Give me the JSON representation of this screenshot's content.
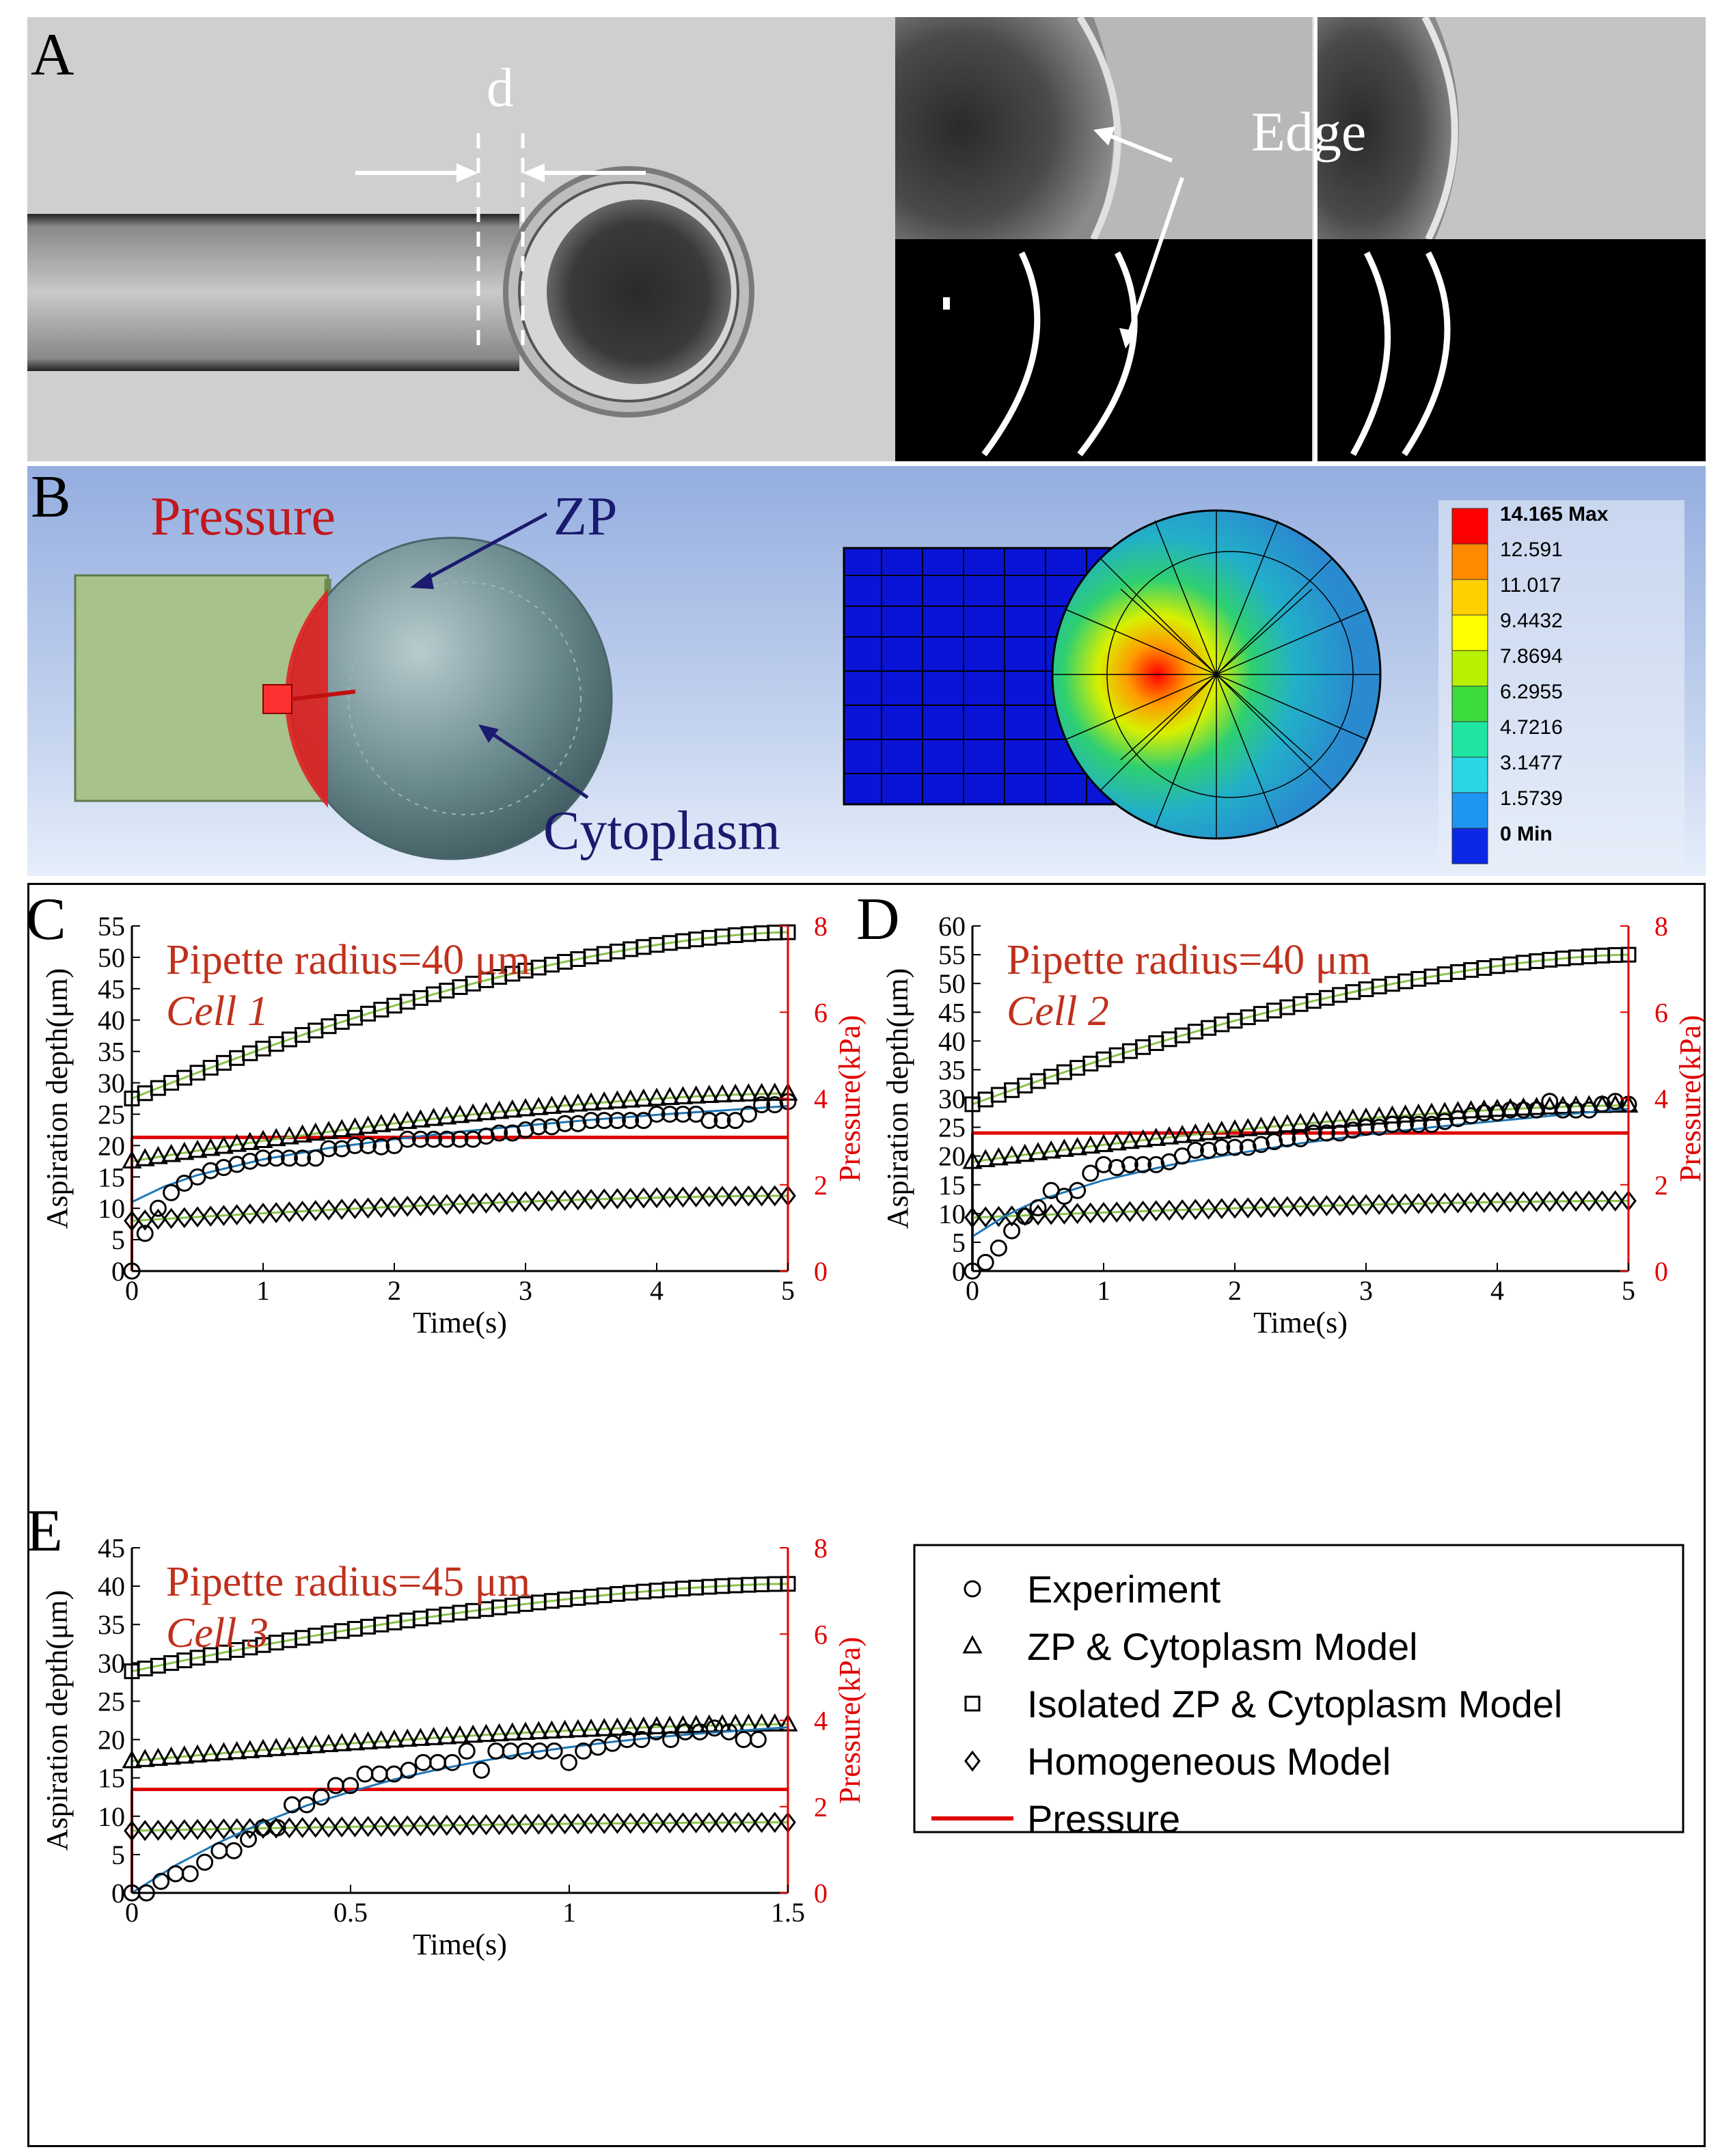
{
  "panel_labels": {
    "a": "A",
    "b": "B",
    "c": "C",
    "d": "D",
    "e": "E"
  },
  "panel_a": {
    "d_label": "d",
    "edge_label": "Edge"
  },
  "panel_b": {
    "pressure_label": "Pressure",
    "zp_label": "ZP",
    "cytoplasm_label": "Cytoplasm",
    "colorbar_labels": [
      "14.165 Max",
      "12.591",
      "11.017",
      "9.4432",
      "7.8694",
      "6.2955",
      "4.7216",
      "3.1477",
      "1.5739",
      "0 Min"
    ],
    "colorbar_colors": [
      "#ff0000",
      "#ff8a00",
      "#ffcf00",
      "#ffff00",
      "#b8f000",
      "#3cdc3c",
      "#1ee6a0",
      "#28d6e6",
      "#1e96f0",
      "#0a28e6"
    ]
  },
  "legend": {
    "items": [
      {
        "label": "Experiment",
        "marker": "circle"
      },
      {
        "label": "ZP & Cytoplasm Model",
        "marker": "triangle"
      },
      {
        "label": "Isolated ZP & Cytoplasm Model",
        "marker": "square"
      },
      {
        "label": "Homogeneous Model",
        "marker": "diamond"
      },
      {
        "label": "Pressure",
        "marker": "line"
      }
    ]
  },
  "colors": {
    "pressure": "#e00000",
    "fit": "#1f77b4",
    "model_line": "#8bc34a",
    "annotation": "#c0301c",
    "panel_b_text": "#1a1a6e"
  },
  "chart_data": [
    {
      "id": "C",
      "type": "line",
      "annotation_line1": "Pipette radius=40 μm",
      "annotation_line2": "Cell 1",
      "xlabel": "Time(s)",
      "ylabel": "Aspiration depth(μm)",
      "y2label": "Pressure(kPa)",
      "xlim": [
        0,
        5
      ],
      "ylim": [
        0,
        55
      ],
      "y2lim": [
        0,
        8
      ],
      "xticks": [
        0,
        1,
        2,
        3,
        4,
        5
      ],
      "xticklabels": [
        "0",
        "1",
        "2",
        "3",
        "4",
        "5"
      ],
      "yticks": [
        0,
        5,
        10,
        15,
        20,
        25,
        30,
        35,
        40,
        45,
        50,
        55
      ],
      "yticklabels": [
        "0",
        "5",
        "10",
        "15",
        "20",
        "25",
        "30",
        "35",
        "40",
        "45",
        "50",
        "55"
      ],
      "y2ticks": [
        0,
        2,
        4,
        6,
        8
      ],
      "y2ticklabels": [
        "0",
        "2",
        "4",
        "6",
        "8"
      ],
      "pressure": 3.1,
      "experiment": {
        "t_step": 0.1,
        "values": [
          0,
          6,
          10,
          12.5,
          14,
          15,
          16,
          16.5,
          17,
          17.5,
          18,
          18,
          18,
          18,
          18,
          19.5,
          19.5,
          20,
          20,
          19.8,
          20,
          21,
          21,
          21,
          21,
          21,
          21,
          21.5,
          22,
          22,
          22.5,
          23,
          23,
          23.5,
          23.5,
          24,
          24,
          24,
          24,
          24,
          25,
          25,
          25,
          25,
          24,
          24,
          24,
          25,
          26.5,
          26.5,
          27
        ]
      },
      "fit": {
        "t": [
          0,
          0.25,
          0.5,
          1,
          1.5,
          2,
          2.5,
          3,
          3.5,
          4,
          4.5,
          5
        ],
        "values": [
          11,
          13.5,
          15.3,
          17.8,
          19.6,
          21,
          22.2,
          23.2,
          24.1,
          24.9,
          25.6,
          26.3
        ]
      },
      "series": [
        {
          "name": "ZP & Cytoplasm Model",
          "marker": "triangle",
          "t0": 0,
          "v0": 17,
          "vmarker0": 17.5,
          "vend": 28.3
        },
        {
          "name": "Isolated ZP & Cytoplasm Model",
          "marker": "square",
          "t0": 0,
          "v0": 26,
          "vmarker0": 27.5,
          "vend": 54
        },
        {
          "name": "Homogeneous Model",
          "marker": "diamond",
          "t0": 0,
          "v0": 7.5,
          "vmarker0": 8,
          "vend": 12
        }
      ]
    },
    {
      "id": "D",
      "type": "line",
      "annotation_line1": "Pipette radius=40 μm",
      "annotation_line2": "Cell 2",
      "xlabel": "Time(s)",
      "ylabel": "Aspiration depth(μm)",
      "y2label": "Pressure(kPa)",
      "xlim": [
        0,
        5
      ],
      "ylim": [
        0,
        60
      ],
      "y2lim": [
        0,
        8
      ],
      "xticks": [
        0,
        1,
        2,
        3,
        4,
        5
      ],
      "xticklabels": [
        "0",
        "1",
        "2",
        "3",
        "4",
        "5"
      ],
      "yticks": [
        0,
        5,
        10,
        15,
        20,
        25,
        30,
        35,
        40,
        45,
        50,
        55,
        60
      ],
      "yticklabels": [
        "0",
        "5",
        "10",
        "15",
        "20",
        "25",
        "30",
        "35",
        "40",
        "45",
        "50",
        "55",
        "60"
      ],
      "y2ticks": [
        0,
        2,
        4,
        6,
        8
      ],
      "y2ticklabels": [
        "0",
        "2",
        "4",
        "6",
        "8"
      ],
      "pressure": 3.2,
      "experiment": {
        "t_step": 0.1,
        "values": [
          0,
          1.5,
          4,
          7,
          9.5,
          11,
          14,
          13,
          14,
          17,
          18.5,
          18,
          18.5,
          18.5,
          18.5,
          19,
          20,
          21,
          21,
          21.5,
          21.5,
          21.5,
          22,
          22.5,
          23,
          23,
          24,
          24,
          24,
          24.5,
          25,
          25,
          25.5,
          25.5,
          25.5,
          25.5,
          26,
          26.5,
          27,
          27.5,
          27.5,
          28,
          28,
          28,
          29.5,
          28,
          28,
          28,
          29,
          29.5,
          29
        ]
      },
      "fit": {
        "t": [
          0,
          0.25,
          0.5,
          1,
          1.5,
          2,
          2.5,
          3,
          3.5,
          4,
          4.5,
          5
        ],
        "values": [
          6,
          9.6,
          12.3,
          15.8,
          18.4,
          20.4,
          22.2,
          23.7,
          25,
          26.1,
          27.2,
          28.2
        ]
      },
      "series": [
        {
          "name": "ZP & Cytoplasm Model",
          "marker": "triangle",
          "t0": 0,
          "v0": 18,
          "vmarker0": 19,
          "vend": 28.8
        },
        {
          "name": "Isolated ZP & Cytoplasm Model",
          "marker": "square",
          "t0": 0,
          "v0": 27,
          "vmarker0": 29,
          "vend": 55
        },
        {
          "name": "Homogeneous Model",
          "marker": "diamond",
          "t0": 0,
          "v0": 8.5,
          "vmarker0": 9.3,
          "vend": 12.2
        }
      ]
    },
    {
      "id": "E",
      "type": "line",
      "annotation_line1": "Pipette radius=45 μm",
      "annotation_line2": "Cell 3",
      "xlabel": "Time(s)",
      "ylabel": "Aspiration depth(μm)",
      "y2label": "Pressure(kPa)",
      "xlim": [
        0,
        1.5
      ],
      "ylim": [
        0,
        45
      ],
      "y2lim": [
        0,
        8
      ],
      "xticks": [
        0,
        0.5,
        1,
        1.5
      ],
      "xticklabels": [
        "0",
        "0.5",
        "1",
        "1.5"
      ],
      "yticks": [
        0,
        5,
        10,
        15,
        20,
        25,
        30,
        35,
        40,
        45
      ],
      "yticklabels": [
        "0",
        "5",
        "10",
        "15",
        "20",
        "25",
        "30",
        "35",
        "40",
        "45"
      ],
      "y2ticks": [
        0,
        2,
        4,
        6,
        8
      ],
      "y2ticklabels": [
        "0",
        "2",
        "4",
        "6",
        "8"
      ],
      "pressure": 2.4,
      "experiment": {
        "t_step": 0.0333,
        "values": [
          0,
          0,
          1.5,
          2.5,
          2.5,
          4,
          5.5,
          5.5,
          7,
          8.5,
          8.5,
          11.5,
          11.5,
          12.5,
          14,
          14,
          15.5,
          15.5,
          15.5,
          16,
          17,
          17,
          17,
          18.5,
          16,
          18.5,
          18.5,
          18.5,
          18.5,
          18.5,
          17,
          18.5,
          19,
          19.5,
          20,
          20,
          21,
          20,
          21,
          21,
          21.5,
          21,
          20,
          20
        ]
      },
      "fit": {
        "t": [
          0,
          0.1,
          0.2,
          0.3,
          0.4,
          0.5,
          0.6,
          0.7,
          0.8,
          0.9,
          1,
          1.1,
          1.2,
          1.3,
          1.4,
          1.5
        ],
        "values": [
          0,
          3.6,
          6.6,
          9.2,
          11.4,
          13.2,
          14.8,
          16.1,
          17.2,
          18.2,
          19,
          19.7,
          20.3,
          20.8,
          21.2,
          21.6
        ]
      },
      "series": [
        {
          "name": "ZP & Cytoplasm Model",
          "marker": "triangle",
          "t0": 0,
          "v0": 17,
          "vmarker0": 17.2,
          "vend": 22
        },
        {
          "name": "Isolated ZP & Cytoplasm Model",
          "marker": "square",
          "t0": 0,
          "v0": 28.5,
          "vmarker0": 28.9,
          "vend": 40.3
        },
        {
          "name": "Homogeneous Model",
          "marker": "diamond",
          "t0": 0,
          "v0": 7.8,
          "vmarker0": 8.1,
          "vend": 9.2
        }
      ]
    }
  ]
}
